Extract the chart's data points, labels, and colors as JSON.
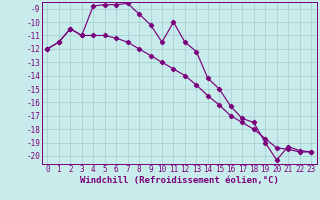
{
  "line1_x": [
    0,
    1,
    2,
    3,
    4,
    5,
    6,
    7,
    8,
    9,
    10,
    11,
    12,
    13,
    14,
    15,
    16,
    17,
    18,
    19,
    20,
    21,
    22,
    23
  ],
  "line1_y": [
    -12.0,
    -11.5,
    -10.5,
    -11.0,
    -8.8,
    -8.7,
    -8.7,
    -8.6,
    -9.4,
    -10.2,
    -11.5,
    -10.0,
    -11.5,
    -12.2,
    -14.2,
    -15.0,
    -16.3,
    -17.2,
    -17.5,
    -19.0,
    -20.3,
    -19.3,
    -19.6,
    -19.7
  ],
  "line2_x": [
    0,
    1,
    2,
    3,
    4,
    5,
    6,
    7,
    8,
    9,
    10,
    11,
    12,
    13,
    14,
    15,
    16,
    17,
    18,
    19,
    20,
    21,
    22,
    23
  ],
  "line2_y": [
    -12.0,
    -11.5,
    -10.5,
    -11.0,
    -11.0,
    -11.0,
    -11.2,
    -11.5,
    -12.0,
    -12.5,
    -13.0,
    -13.5,
    -14.0,
    -14.7,
    -15.5,
    -16.2,
    -17.0,
    -17.5,
    -18.0,
    -18.7,
    -19.4,
    -19.5,
    -19.7,
    -19.7
  ],
  "line_color": "#7b007b",
  "marker": "D",
  "markersize": 2.2,
  "linewidth": 0.85,
  "bg_color": "#c8ecec",
  "grid_color": "#a8d4d4",
  "xlabel": "Windchill (Refroidissement éolien,°C)",
  "ylim": [
    -20.6,
    -8.5
  ],
  "xlim": [
    -0.5,
    23.5
  ],
  "yticks": [
    -9,
    -10,
    -11,
    -12,
    -13,
    -14,
    -15,
    -16,
    -17,
    -18,
    -19,
    -20
  ],
  "xticks": [
    0,
    1,
    2,
    3,
    4,
    5,
    6,
    7,
    8,
    9,
    10,
    11,
    12,
    13,
    14,
    15,
    16,
    17,
    18,
    19,
    20,
    21,
    22,
    23
  ],
  "tick_fontsize": 5.5,
  "xlabel_fontsize": 6.5,
  "axis_color": "#7b007b"
}
